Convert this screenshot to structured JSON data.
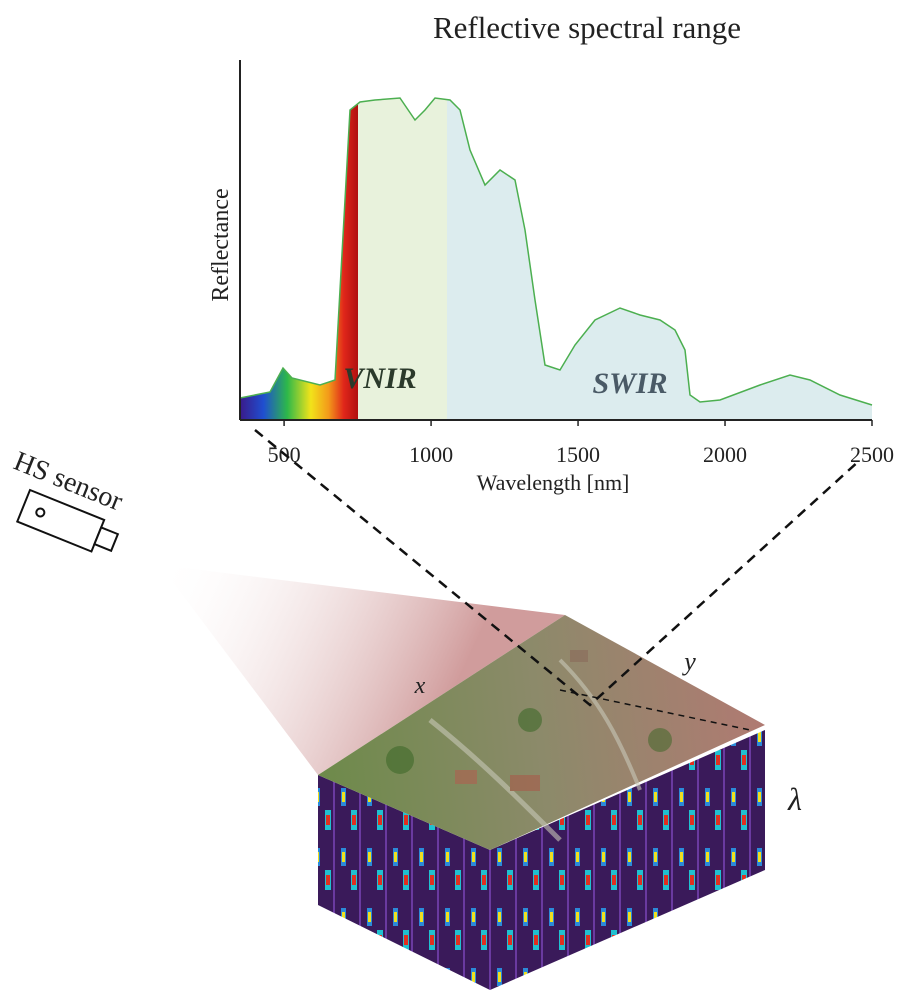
{
  "spectrum": {
    "title": "Reflective spectral range",
    "y_label": "Reflectance",
    "x_label": "Wavelength [nm]",
    "xlim": [
      350,
      2500
    ],
    "xticks": [
      500,
      1000,
      1500,
      2000,
      2500
    ],
    "regions": [
      "VNIR",
      "SWIR"
    ]
  },
  "sensor": {
    "label": "HS sensor"
  },
  "cube": {
    "x_label": "x",
    "y_label": "y",
    "band_label": "λ"
  }
}
